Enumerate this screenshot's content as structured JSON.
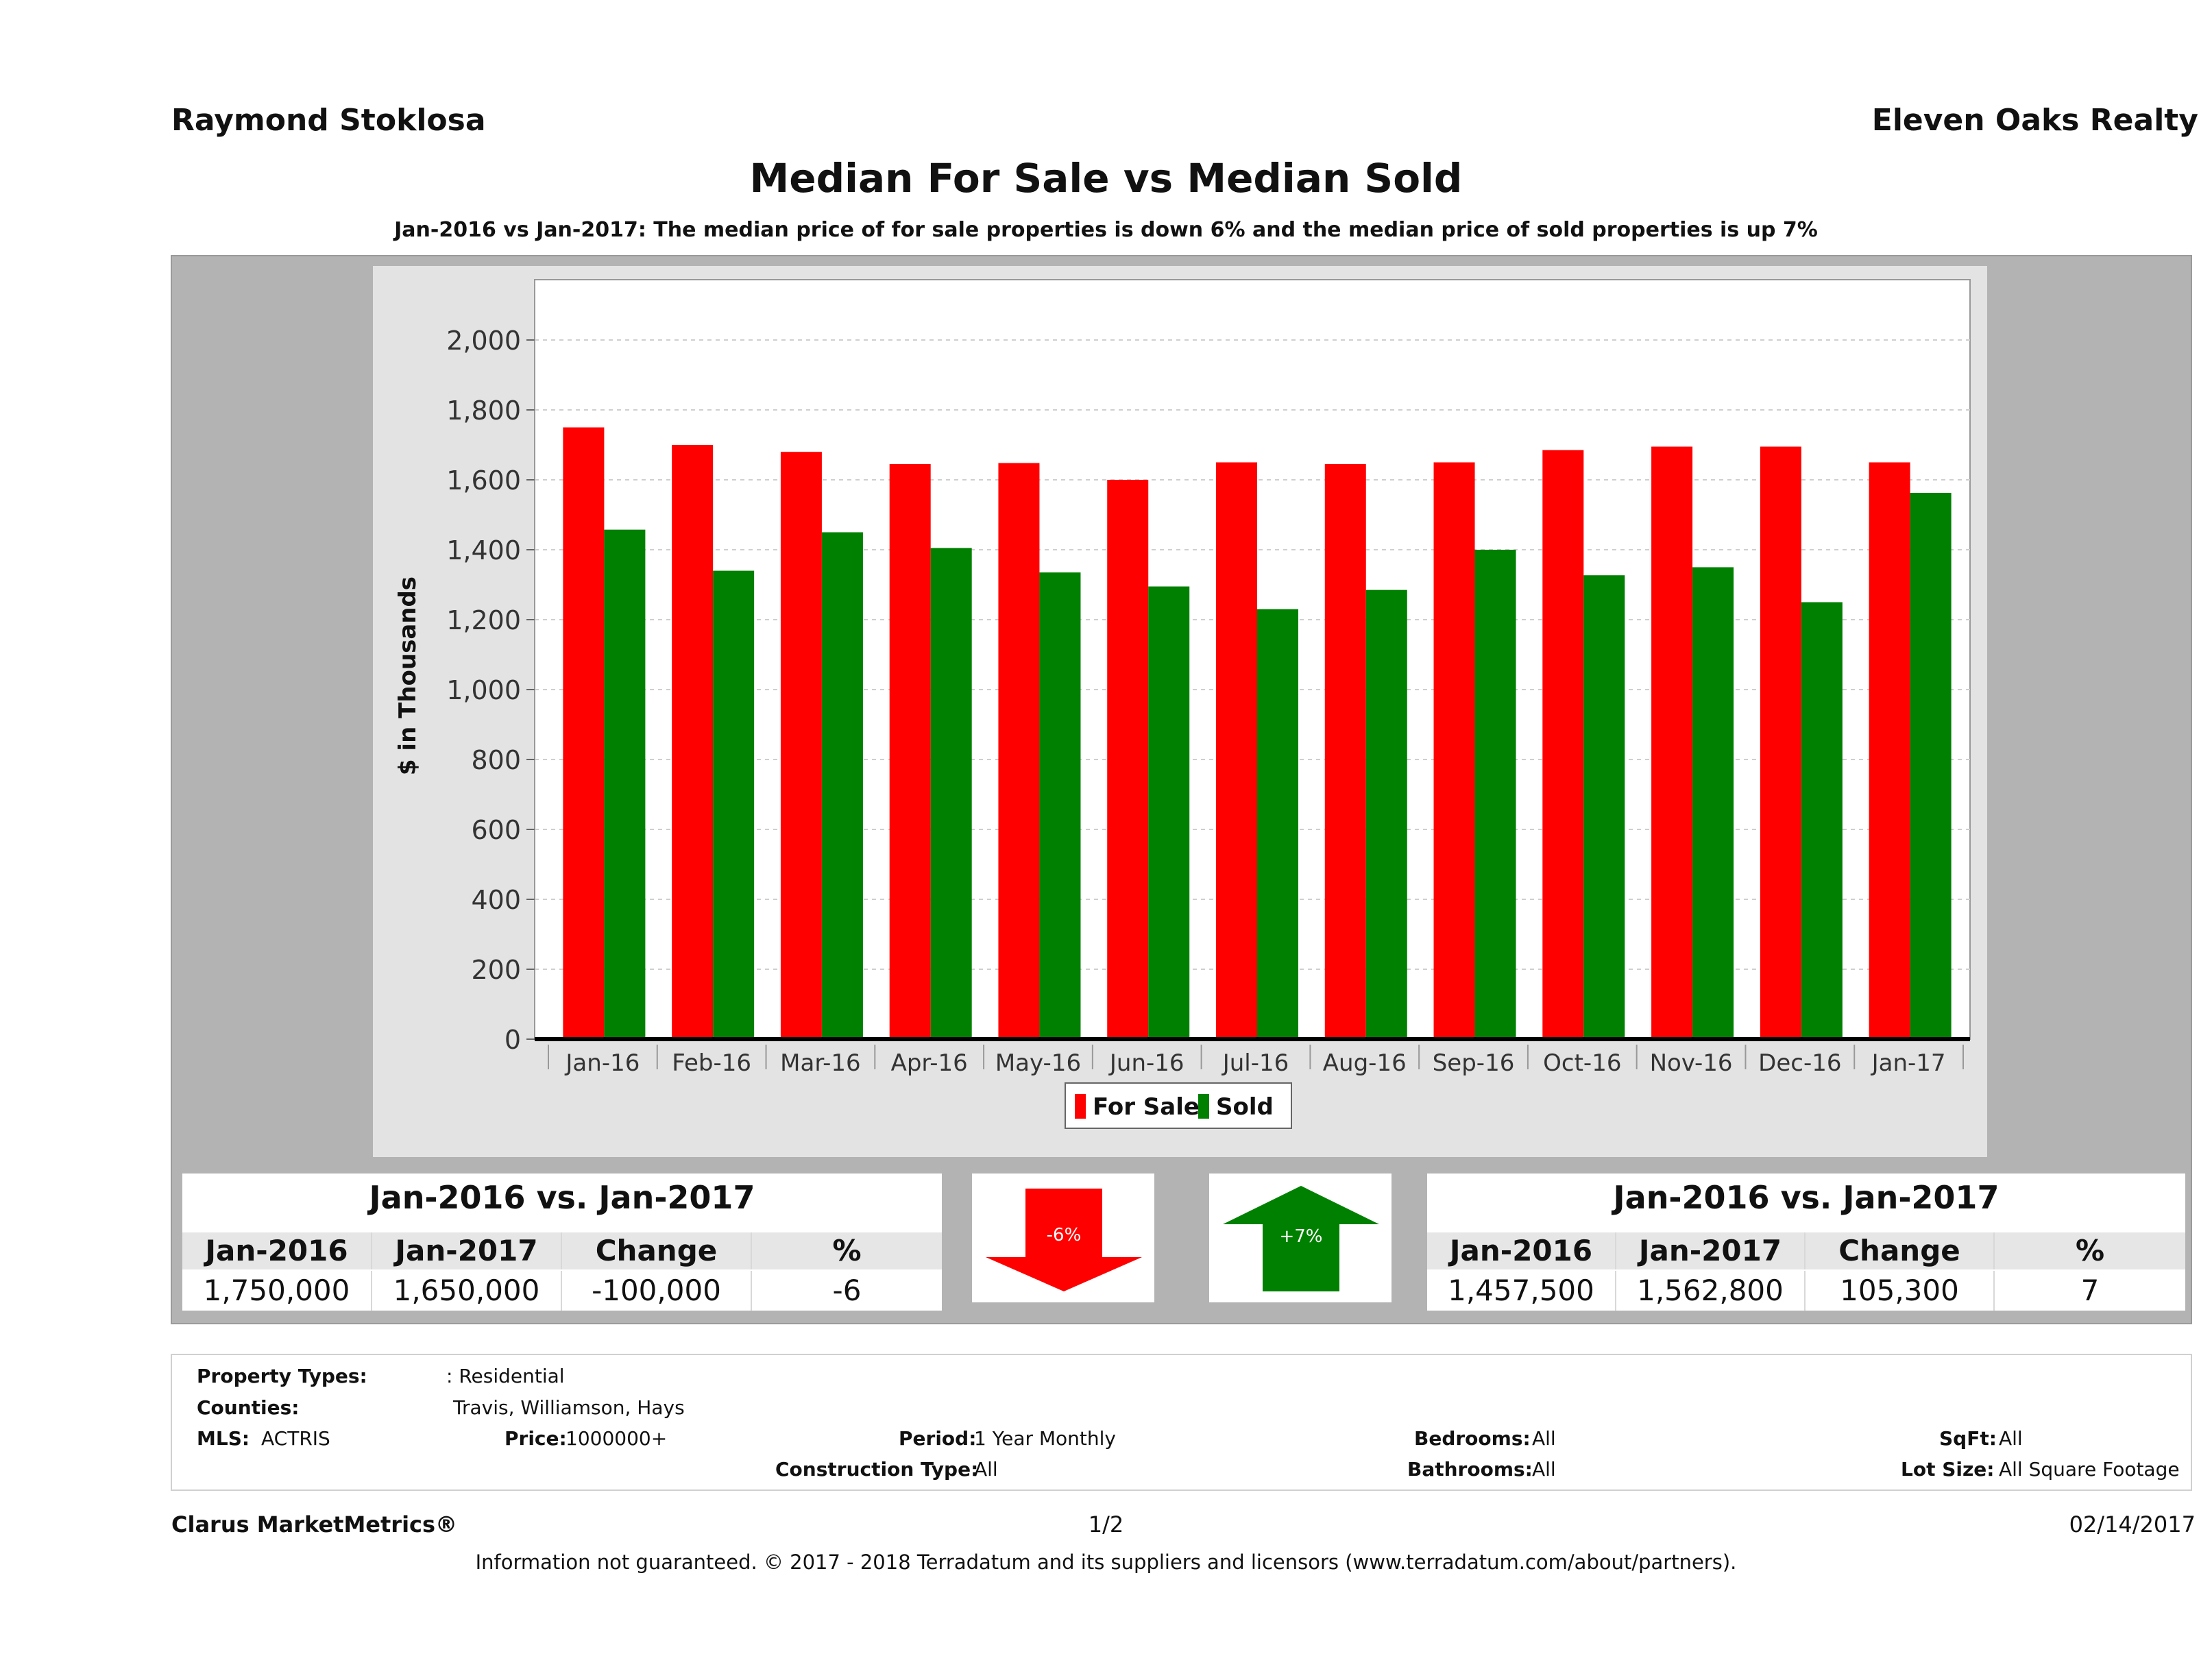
{
  "header": {
    "agent_name": "Raymond Stoklosa",
    "company": "Eleven Oaks Realty"
  },
  "chart_data": {
    "type": "bar",
    "title": "Median For Sale vs Median Sold",
    "subtitle": "Jan-2016 vs Jan-2017: The median price of for sale properties is down 6% and the median price of sold properties is up 7%",
    "xlabel": "",
    "ylabel": "$ in Thousands",
    "ylim": [
      0,
      2000
    ],
    "yticks": [
      0,
      200,
      400,
      600,
      800,
      1000,
      1200,
      1400,
      1600,
      1800,
      2000
    ],
    "ytick_labels": [
      "0",
      "200",
      "400",
      "600",
      "800",
      "1,000",
      "1,200",
      "1,400",
      "1,600",
      "1,800",
      "2,000"
    ],
    "grid": true,
    "legend_position": "bottom-center",
    "categories": [
      "Jan-16",
      "Feb-16",
      "Mar-16",
      "Apr-16",
      "May-16",
      "Jun-16",
      "Jul-16",
      "Aug-16",
      "Sep-16",
      "Oct-16",
      "Nov-16",
      "Dec-16",
      "Jan-17"
    ],
    "series": [
      {
        "name": "For Sale",
        "color": "#ff0000",
        "values": [
          1750,
          1700,
          1680,
          1645,
          1648,
          1600,
          1650,
          1645,
          1650,
          1685,
          1695,
          1695,
          1650
        ]
      },
      {
        "name": "Sold",
        "color": "#008000",
        "values": [
          1457.5,
          1340,
          1450,
          1405,
          1335,
          1295,
          1230,
          1285,
          1400,
          1327,
          1350,
          1250,
          1562.8
        ]
      }
    ]
  },
  "for_sale_summary": {
    "title": "Jan-2016 vs. Jan-2017",
    "headers": [
      "Jan-2016",
      "Jan-2017",
      "Change",
      "%"
    ],
    "values": [
      "1,750,000",
      "1,650,000",
      "-100,000",
      "-6"
    ]
  },
  "sold_summary": {
    "title": "Jan-2016 vs. Jan-2017",
    "headers": [
      "Jan-2016",
      "Jan-2017",
      "Change",
      "%"
    ],
    "values": [
      "1,457,500",
      "1,562,800",
      "105,300",
      "7"
    ]
  },
  "arrows": {
    "for_sale": {
      "label": "-6%",
      "direction": "down",
      "color": "#ff0000",
      "icon": "arrow-down-icon"
    },
    "sold": {
      "label": "+7%",
      "direction": "up",
      "color": "#008000",
      "icon": "arrow-up-icon"
    }
  },
  "filters": {
    "property_types_label": "Property Types:",
    "property_types_value": ": Residential",
    "counties_label": "Counties:",
    "counties_value": "Travis, Williamson, Hays",
    "mls_label": "MLS:",
    "mls_value": "ACTRIS",
    "price_label": "Price:",
    "price_value": "1000000+",
    "period_label": "Period:",
    "period_value": "1 Year Monthly",
    "construction_label": "Construction Type:",
    "construction_value": "All",
    "bedrooms_label": "Bedrooms:",
    "bedrooms_value": "All",
    "bathrooms_label": "Bathrooms:",
    "bathrooms_value": "All",
    "sqft_label": "SqFt:",
    "sqft_value": "All",
    "lot_size_label": "Lot Size:",
    "lot_size_value": "All Square Footage"
  },
  "footer": {
    "brand": "Clarus MarketMetrics®",
    "page": "1/2",
    "date": "02/14/2017",
    "disclaimer": "Information not guaranteed. © 2017 - 2018 Terradatum and its suppliers and licensors (www.terradatum.com/about/partners)."
  }
}
